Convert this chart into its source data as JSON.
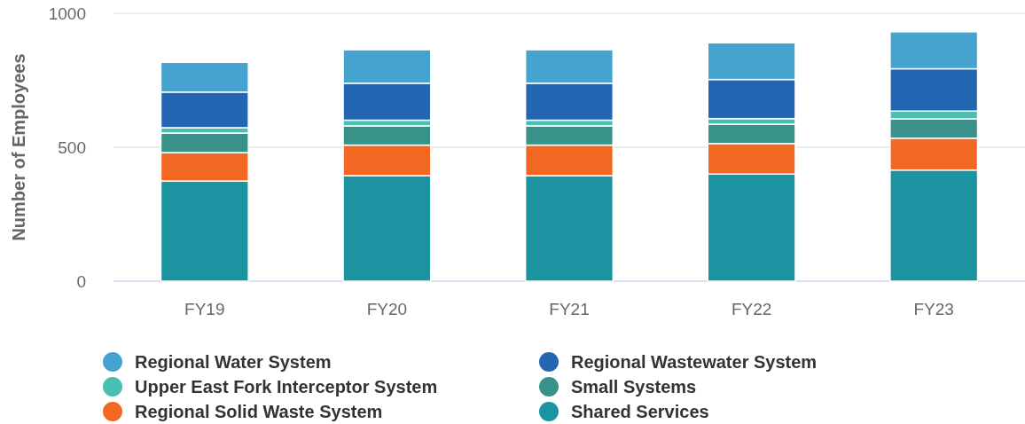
{
  "chart_data": {
    "type": "bar",
    "stacked": true,
    "ylabel": "Number of Employees",
    "categories": [
      "FY19",
      "FY20",
      "FY21",
      "FY22",
      "FY23"
    ],
    "ylim": [
      0,
      1000
    ],
    "yticks": [
      0,
      500,
      1000
    ],
    "grid": "y",
    "legend": "bottom",
    "series": [
      {
        "name": "Shared Services",
        "color": "#1c93a0",
        "values": [
          374,
          394,
          394,
          400,
          415
        ]
      },
      {
        "name": "Regional Solid Waste System",
        "color": "#f26722",
        "values": [
          106,
          114,
          114,
          114,
          119
        ]
      },
      {
        "name": "Small Systems",
        "color": "#39928a",
        "values": [
          73,
          72,
          72,
          72,
          72
        ]
      },
      {
        "name": "Upper East Fork Interceptor System",
        "color": "#4bbfb0",
        "values": [
          20,
          21,
          21,
          21,
          29
        ]
      },
      {
        "name": "Regional Wastewater System",
        "color": "#2566b3",
        "values": [
          133,
          138,
          138,
          146,
          158
        ]
      },
      {
        "name": "Regional Water System",
        "color": "#45a3d0",
        "values": [
          111,
          125,
          125,
          137,
          138
        ]
      }
    ]
  }
}
